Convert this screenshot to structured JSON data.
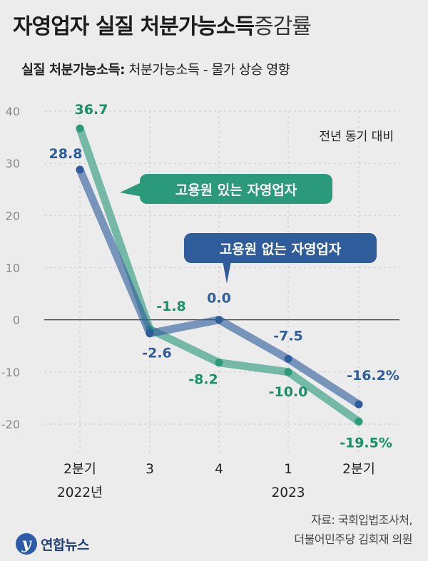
{
  "header": {
    "title_bold": "자영업자 실질 처분가능소득",
    "title_light": "증감률",
    "subtitle_bold": "실질 처분가능소득:",
    "subtitle_rest": " 처분가능소득 - 물가 상승 영향"
  },
  "footer": {
    "source_line1": "자료: 국회입법조사처,",
    "source_line2": "더불어민주당 김회재 의원",
    "logo_text": "연합뉴스"
  },
  "colors": {
    "with_employees": "#2a9a7a",
    "without_employees": "#2f5d9b",
    "with_employees_label": "#179068",
    "without_employees_label": "#2f5d9b"
  },
  "chart_data": {
    "type": "line",
    "note": "전년 동기 대비",
    "categories": [
      "2분기",
      "3",
      "4",
      "1",
      "2분기"
    ],
    "year_labels": [
      "2022년",
      "2023"
    ],
    "ylim": [
      -20,
      40
    ],
    "yticks": [
      40,
      30,
      20,
      10,
      0,
      -10,
      -20
    ],
    "series": [
      {
        "name": "고용원 있는 자영업자",
        "values": [
          36.7,
          -1.8,
          -8.2,
          -10.0,
          -19.5
        ],
        "labels": [
          "36.7",
          "-1.8",
          "-8.2",
          "-10.0",
          "-19.5%"
        ]
      },
      {
        "name": "고용원 없는 자영업자",
        "values": [
          28.8,
          -2.6,
          0.0,
          -7.5,
          -16.2
        ],
        "labels": [
          "28.8",
          "-2.6",
          "0.0",
          "-7.5",
          "-16.2%"
        ]
      }
    ]
  }
}
